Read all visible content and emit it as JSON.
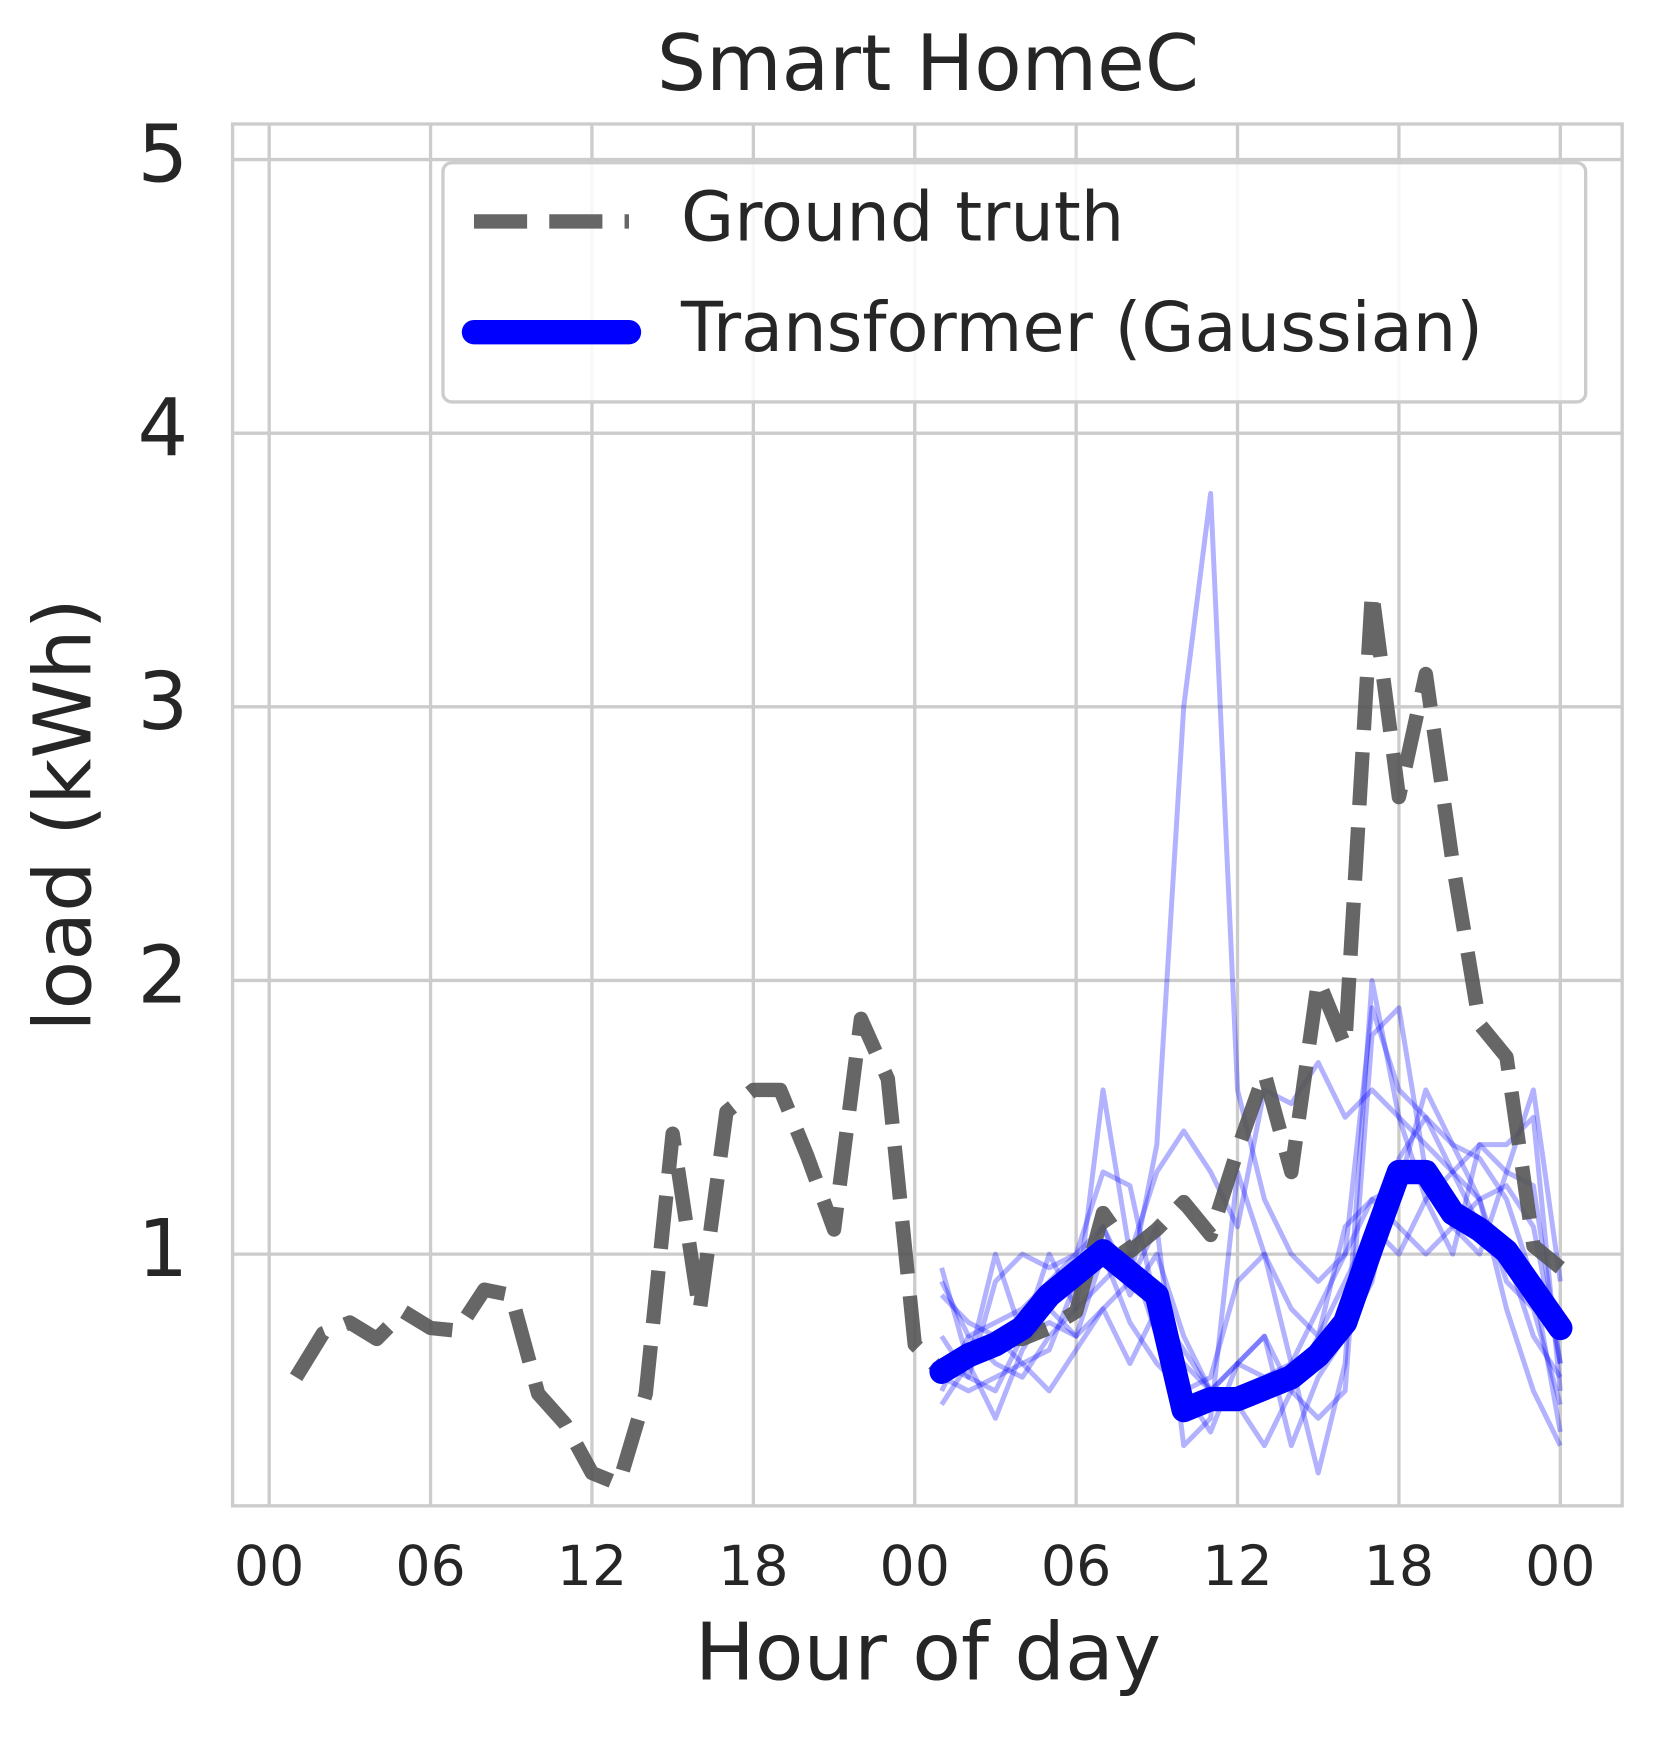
{
  "chart_data": {
    "type": "line",
    "title": "Smart HomeC",
    "xlabel": "Hour of day",
    "ylabel": "load (kWh)",
    "xlim": [
      -1.36,
      50.3
    ],
    "ylim": [
      0.08,
      5.13
    ],
    "xticks": [
      {
        "value": 0,
        "label": "00"
      },
      {
        "value": 6,
        "label": "06"
      },
      {
        "value": 12,
        "label": "12"
      },
      {
        "value": 18,
        "label": "18"
      },
      {
        "value": 24,
        "label": "00"
      },
      {
        "value": 30,
        "label": "06"
      },
      {
        "value": 36,
        "label": "12"
      },
      {
        "value": 42,
        "label": "18"
      },
      {
        "value": 48,
        "label": "00"
      }
    ],
    "yticks": [
      1,
      2,
      3,
      4,
      5
    ],
    "grid": true,
    "legend": "upper right",
    "series": [
      {
        "name": "Ground truth",
        "color": "#555555",
        "dash": true,
        "x": [
          1,
          2,
          3,
          4,
          5,
          6,
          7,
          8,
          9,
          10,
          11,
          12,
          13,
          14,
          15,
          16,
          17,
          18,
          19,
          20,
          21,
          22,
          23,
          24,
          25,
          26,
          27,
          28,
          29,
          30,
          31,
          32,
          33,
          34,
          35,
          36,
          37,
          38,
          39,
          40,
          41,
          42,
          43,
          44,
          45,
          46,
          47,
          48
        ],
        "values": [
          0.55,
          0.71,
          0.75,
          0.69,
          0.79,
          0.73,
          0.72,
          0.87,
          0.85,
          0.49,
          0.38,
          0.2,
          0.16,
          0.49,
          1.44,
          0.79,
          1.52,
          1.6,
          1.6,
          1.36,
          1.09,
          1.86,
          1.64,
          0.67,
          0.57,
          0.63,
          0.69,
          0.69,
          0.73,
          0.79,
          1.15,
          1.01,
          1.09,
          1.19,
          1.07,
          1.38,
          1.66,
          1.3,
          2.0,
          1.76,
          3.42,
          2.67,
          3.12,
          2.43,
          1.84,
          1.72,
          1.03,
          0.95
        ]
      },
      {
        "name": "Transformer (Gaussian)",
        "color": "#0000ff",
        "dash": false,
        "x": [
          25,
          26,
          27,
          28,
          29,
          30,
          31,
          32,
          33,
          34,
          35,
          36,
          37,
          38,
          39,
          40,
          41,
          42,
          43,
          44,
          45,
          46,
          47,
          48
        ],
        "values": [
          0.57,
          0.63,
          0.67,
          0.73,
          0.85,
          0.93,
          1.01,
          0.93,
          0.85,
          0.43,
          0.47,
          0.47,
          0.51,
          0.55,
          0.63,
          0.75,
          1.03,
          1.3,
          1.3,
          1.15,
          1.09,
          1.01,
          0.87,
          0.73
        ]
      }
    ],
    "samples": {
      "color": "#0000ff",
      "opacity": 0.3,
      "x": [
        25,
        26,
        27,
        28,
        29,
        30,
        31,
        32,
        33,
        34,
        35,
        36,
        37,
        38,
        39,
        40,
        41,
        42,
        43,
        44,
        45,
        46,
        47,
        48
      ],
      "values": [
        [
          0.9,
          0.7,
          0.75,
          0.8,
          0.9,
          1.0,
          1.1,
          0.9,
          1.4,
          3.0,
          3.78,
          1.6,
          1.2,
          1.0,
          0.9,
          1.0,
          1.9,
          1.6,
          1.5,
          1.3,
          1.2,
          1.25,
          1.1,
          0.6
        ],
        [
          0.95,
          0.6,
          1.0,
          0.7,
          1.0,
          0.8,
          1.6,
          1.0,
          1.3,
          1.45,
          1.3,
          1.1,
          1.6,
          1.55,
          1.7,
          1.5,
          1.6,
          1.5,
          1.4,
          1.3,
          1.4,
          1.4,
          1.5,
          0.5
        ],
        [
          0.5,
          0.7,
          0.6,
          0.55,
          0.7,
          0.8,
          0.9,
          1.0,
          0.7,
          0.6,
          0.5,
          0.6,
          0.7,
          0.5,
          0.4,
          0.5,
          1.8,
          1.9,
          1.3,
          1.1,
          1.2,
          0.9,
          0.8,
          0.45
        ],
        [
          0.6,
          0.55,
          0.5,
          0.7,
          0.75,
          0.7,
          0.8,
          0.9,
          1.1,
          0.3,
          0.4,
          1.3,
          1.0,
          0.6,
          0.2,
          0.6,
          2.0,
          1.5,
          1.2,
          1.0,
          1.4,
          1.3,
          1.25,
          0.6
        ],
        [
          0.45,
          0.6,
          0.4,
          0.65,
          0.8,
          0.7,
          1.0,
          0.75,
          0.6,
          0.5,
          0.35,
          0.6,
          0.7,
          0.3,
          0.55,
          0.7,
          0.9,
          1.35,
          1.5,
          1.4,
          1.35,
          1.2,
          0.9,
          0.35
        ],
        [
          0.7,
          0.55,
          0.9,
          1.0,
          0.95,
          1.0,
          1.3,
          1.25,
          0.8,
          0.5,
          0.55,
          0.9,
          1.0,
          0.8,
          0.7,
          1.1,
          1.2,
          1.1,
          1.0,
          1.1,
          1.0,
          1.3,
          1.6,
          0.9
        ],
        [
          0.55,
          0.5,
          0.55,
          0.6,
          0.65,
          0.9,
          1.1,
          0.85,
          1.0,
          0.7,
          0.5,
          0.6,
          0.55,
          0.6,
          0.8,
          1.0,
          1.2,
          1.25,
          1.6,
          1.4,
          1.2,
          0.8,
          0.5,
          0.3
        ],
        [
          0.85,
          0.75,
          0.7,
          0.6,
          0.5,
          0.65,
          0.8,
          0.6,
          0.8,
          0.65,
          0.5,
          0.45,
          0.3,
          0.5,
          0.7,
          0.9,
          1.1,
          1.0,
          1.2,
          1.3,
          1.1,
          1.0,
          0.7,
          0.55
        ]
      ]
    }
  }
}
